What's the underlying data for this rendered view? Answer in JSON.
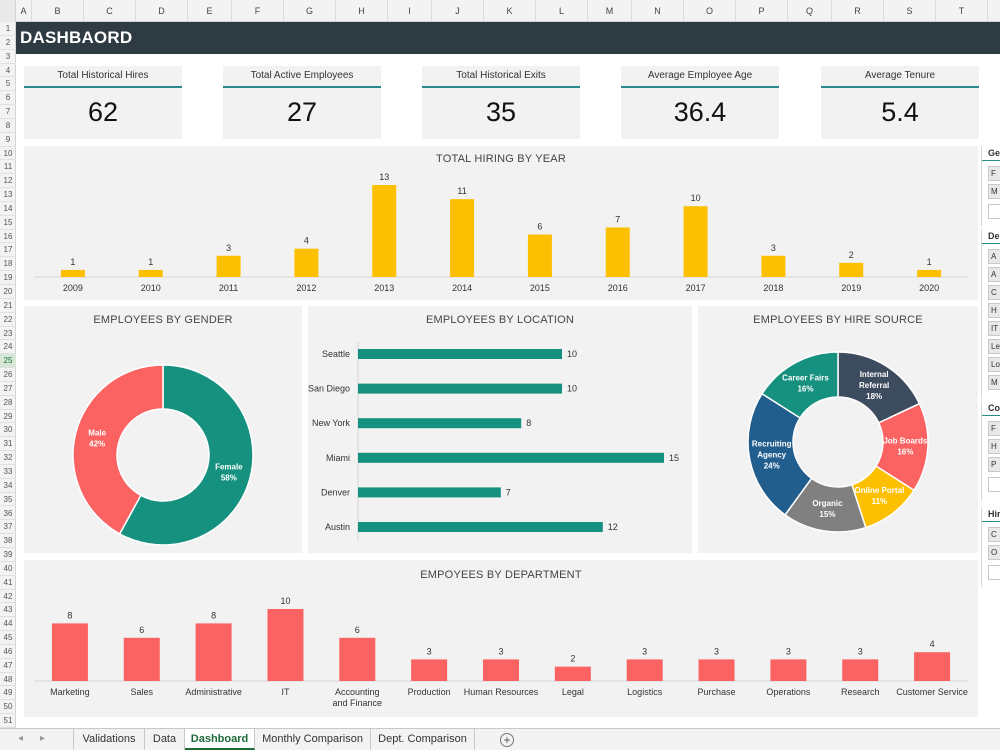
{
  "window": {
    "sheet_title": "DASHBAORD"
  },
  "columns": [
    "A",
    "B",
    "C",
    "D",
    "E",
    "F",
    "G",
    "H",
    "I",
    "J",
    "K",
    "L",
    "M",
    "N",
    "O",
    "P",
    "Q",
    "R",
    "S",
    "T"
  ],
  "rows": [
    "1",
    "2",
    "3",
    "4",
    "5",
    "6",
    "7",
    "8",
    "9",
    "10",
    "11",
    "12",
    "13",
    "14",
    "15",
    "16",
    "17",
    "18",
    "19",
    "20",
    "21",
    "22",
    "23",
    "24",
    "25",
    "26",
    "27",
    "28",
    "29",
    "30",
    "31",
    "32",
    "33",
    "34",
    "35",
    "36",
    "37",
    "38",
    "39",
    "40",
    "41",
    "42",
    "43",
    "44",
    "45",
    "46",
    "47",
    "48",
    "49",
    "50",
    "51"
  ],
  "active_row": "25",
  "kpis": [
    {
      "label": "Total Historical Hires",
      "value": "62"
    },
    {
      "label": "Total Active Employees",
      "value": "27"
    },
    {
      "label": "Total Historical Exits",
      "value": "35"
    },
    {
      "label": "Average Employee Age",
      "value": "36.4"
    },
    {
      "label": "Average Tenure",
      "value": "5.4"
    }
  ],
  "colors": {
    "accent": "#2a8a8e",
    "yellow": "#fcc000",
    "teal": "#16917f",
    "coral": "#fb6363",
    "header": "#2e3b43"
  },
  "chart_data": [
    {
      "type": "bar",
      "title": "TOTAL HIRING BY YEAR",
      "categories": [
        "2009",
        "2010",
        "2011",
        "2012",
        "2013",
        "2014",
        "2015",
        "2016",
        "2017",
        "2018",
        "2019",
        "2020"
      ],
      "values": [
        1,
        1,
        3,
        4,
        13,
        11,
        6,
        7,
        10,
        3,
        2,
        1
      ],
      "color": "#fcc000",
      "grid": false
    },
    {
      "type": "pie",
      "title": "EMPLOYEES BY GENDER",
      "donut": true,
      "slices": [
        {
          "label": "Female",
          "value": 58,
          "display": "58%",
          "color": "#16917f"
        },
        {
          "label": "Male",
          "value": 42,
          "display": "42%",
          "color": "#fb6363"
        }
      ]
    },
    {
      "type": "bar",
      "orientation": "horizontal",
      "title": "EMPLOYEES BY LOCATION",
      "categories": [
        "Seattle",
        "San Diego",
        "New York",
        "Miami",
        "Denver",
        "Austin"
      ],
      "values": [
        10,
        10,
        8,
        15,
        7,
        12
      ],
      "color": "#16917f",
      "grid": false
    },
    {
      "type": "pie",
      "title": "EMPLOYEES BY HIRE SOURCE",
      "donut": true,
      "slices": [
        {
          "label": "Internal Referral",
          "lines": [
            "Internal",
            "Referral"
          ],
          "value": 18,
          "display": "18%",
          "color": "#3d4b5e"
        },
        {
          "label": "Job Boards",
          "lines": [
            "Job Boards"
          ],
          "value": 16,
          "display": "16%",
          "color": "#fb6363"
        },
        {
          "label": "Online Portal",
          "lines": [
            "Online Portal"
          ],
          "value": 11,
          "display": "11%",
          "color": "#fcc000"
        },
        {
          "label": "Organic",
          "lines": [
            "Organic"
          ],
          "value": 15,
          "display": "15%",
          "color": "#808080"
        },
        {
          "label": "Recruiting Agency",
          "lines": [
            "Recruiting",
            "Agency"
          ],
          "value": 24,
          "display": "24%",
          "color": "#215d8d"
        },
        {
          "label": "Career Fairs",
          "lines": [
            "Career Fairs"
          ],
          "value": 16,
          "display": "16%",
          "color": "#16917f"
        }
      ]
    },
    {
      "type": "bar",
      "title": "EMPOYEES BY DEPARTMENT",
      "categories": [
        "Marketing",
        "Sales",
        "Administrative",
        "IT",
        "Accounting and Finance",
        "Production",
        "Human Resources",
        "Legal",
        "Logistics",
        "Purchase",
        "Operations",
        "Research",
        "Customer Service"
      ],
      "values": [
        8,
        6,
        8,
        10,
        6,
        3,
        3,
        2,
        3,
        3,
        3,
        3,
        4
      ],
      "color": "#fb6363",
      "grid": false
    }
  ],
  "slicers": [
    {
      "title": "Ge",
      "items": [
        "F",
        "M",
        ""
      ]
    },
    {
      "title": "De",
      "items": [
        "A",
        "A",
        "C",
        "H",
        "IT",
        "Le",
        "Lo",
        "M"
      ]
    },
    {
      "title": "Co",
      "items": [
        "F",
        "H",
        "P",
        ""
      ]
    },
    {
      "title": "Hir",
      "items": [
        "C",
        "O",
        ""
      ]
    }
  ],
  "tabs": [
    {
      "label": "Validations",
      "active": false
    },
    {
      "label": "Data",
      "active": false
    },
    {
      "label": "Dashboard",
      "active": true
    },
    {
      "label": "Monthly Comparison",
      "active": false
    },
    {
      "label": "Dept. Comparison",
      "active": false
    }
  ],
  "tab_nav": {
    "prev": "◂",
    "next": "▸",
    "add": "+"
  }
}
